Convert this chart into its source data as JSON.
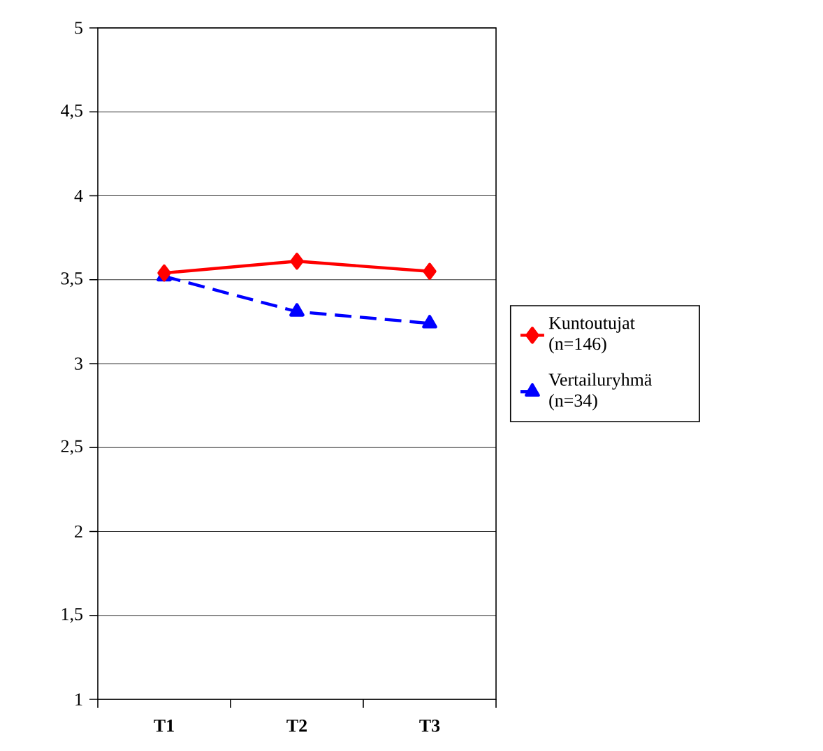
{
  "chart_data": {
    "type": "line",
    "categories": [
      "T1",
      "T2",
      "T3"
    ],
    "series": [
      {
        "name": "Kuntoutujat (n=146)",
        "color": "#ff0000",
        "values": [
          3.54,
          3.61,
          3.55
        ],
        "marker": "diamond",
        "line_style": "solid"
      },
      {
        "name": "Vertailuryhmä (n=34)",
        "color": "#0000ff",
        "values": [
          3.52,
          3.31,
          3.24
        ],
        "marker": "triangle",
        "line_style": "dashed"
      }
    ],
    "ylim": [
      1,
      5
    ],
    "yticks": [
      {
        "value": 1,
        "label": "1"
      },
      {
        "value": 1.5,
        "label": "1,5"
      },
      {
        "value": 2,
        "label": "2"
      },
      {
        "value": 2.5,
        "label": "2,5"
      },
      {
        "value": 3,
        "label": "3"
      },
      {
        "value": 3.5,
        "label": "3,5"
      },
      {
        "value": 4,
        "label": "4"
      },
      {
        "value": 4.5,
        "label": "4,5"
      },
      {
        "value": 5,
        "label": "5"
      }
    ],
    "grid": "y",
    "legend": "right"
  }
}
